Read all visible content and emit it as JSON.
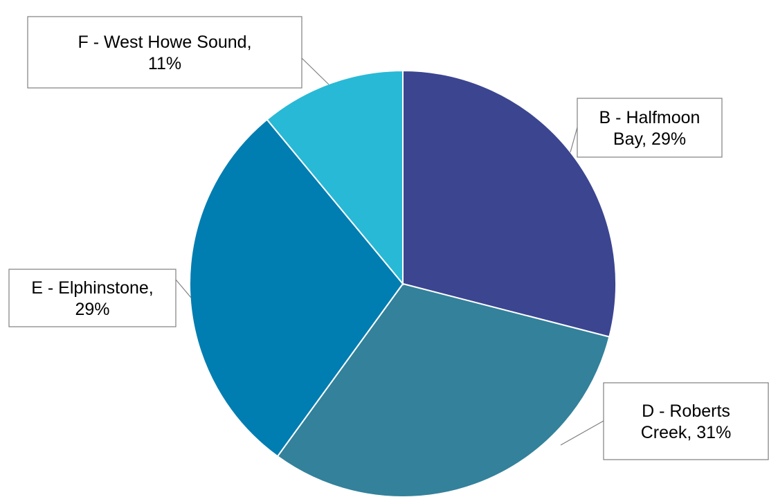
{
  "chart_data": {
    "type": "pie",
    "title": "",
    "start_angle": "12 o'clock",
    "direction": "clockwise",
    "slices": [
      {
        "name": "B - Halfmoon Bay",
        "value": 29,
        "label_lines": [
          "B - Halfmoon",
          "Bay, 29%"
        ],
        "color": "#3B4590"
      },
      {
        "name": "D - Roberts Creek",
        "value": 31,
        "label_lines": [
          "D - Roberts",
          "Creek, 31%"
        ],
        "color": "#33819B"
      },
      {
        "name": "E - Elphinstone",
        "value": 29,
        "label_lines": [
          "E - Elphinstone,",
          "29%"
        ],
        "color": "#007DB1"
      },
      {
        "name": "F - West Howe Sound",
        "value": 11,
        "label_lines": [
          "F - West Howe Sound,",
          "11%"
        ],
        "color": "#28B9D6"
      }
    ],
    "legend": "none",
    "data_labels": "callouts"
  }
}
